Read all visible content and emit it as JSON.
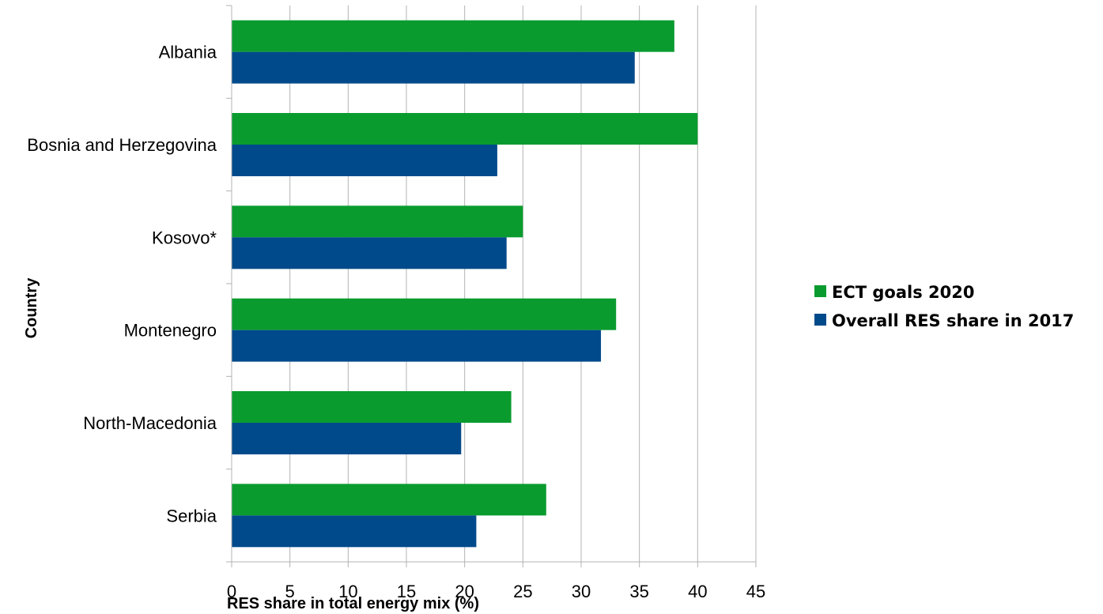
{
  "chart_data": {
    "type": "bar",
    "orientation": "horizontal",
    "categories": [
      "Albania",
      "Bosnia and Herzegovina",
      "Kosovo*",
      "Montenegro",
      "North-Macedonia",
      "Serbia"
    ],
    "series": [
      {
        "name": "ECT goals 2020",
        "color": "#0a9b2f",
        "values": [
          38,
          40,
          25,
          33,
          24,
          27
        ]
      },
      {
        "name": "Overall RES share in 2017",
        "color": "#004a8b",
        "values": [
          34.6,
          22.8,
          23.6,
          31.7,
          19.7,
          21
        ]
      }
    ],
    "xlabel": "RES share in total energy mix (%)",
    "ylabel": "Country",
    "xlim": [
      0,
      45
    ],
    "xticks": [
      0,
      5,
      10,
      15,
      20,
      25,
      30,
      35,
      40,
      45
    ],
    "grid": "vertical",
    "legend_position": "right"
  }
}
